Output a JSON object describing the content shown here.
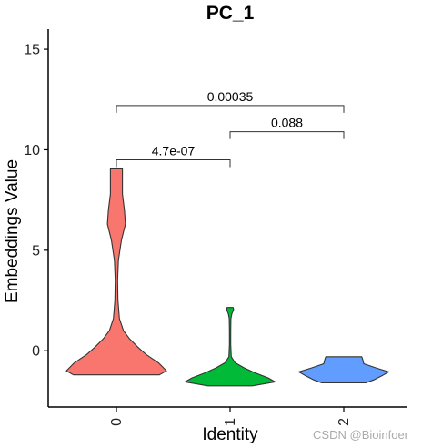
{
  "chart_data": {
    "type": "violin",
    "title": "PC_1",
    "xlabel": "Identity",
    "ylabel": "Embeddings Value",
    "categories": [
      "0",
      "1",
      "2"
    ],
    "ylim": [
      -2.8,
      16
    ],
    "yticks": [
      0,
      5,
      10,
      15
    ],
    "series": [
      {
        "category": "0",
        "color": "#F8766D",
        "density": [
          [
            -1.2,
            0.43
          ],
          [
            -1.0,
            0.5
          ],
          [
            -0.6,
            0.42
          ],
          [
            -0.2,
            0.3
          ],
          [
            0.2,
            0.21
          ],
          [
            0.6,
            0.13
          ],
          [
            1.0,
            0.07
          ],
          [
            1.6,
            0.03
          ],
          [
            2.5,
            0.015
          ],
          [
            3.5,
            0.012
          ],
          [
            4.5,
            0.02
          ],
          [
            5.5,
            0.05
          ],
          [
            6.3,
            0.09
          ],
          [
            7.0,
            0.08
          ],
          [
            7.8,
            0.06
          ],
          [
            8.5,
            0.06
          ],
          [
            9.05,
            0.06
          ]
        ]
      },
      {
        "category": "1",
        "color": "#00BA38",
        "density": [
          [
            -1.75,
            0.22
          ],
          [
            -1.55,
            0.45
          ],
          [
            -1.35,
            0.38
          ],
          [
            -1.1,
            0.25
          ],
          [
            -0.85,
            0.14
          ],
          [
            -0.6,
            0.05
          ],
          [
            -0.3,
            0.012
          ],
          [
            0.3,
            0.006
          ],
          [
            1.0,
            0.006
          ],
          [
            1.6,
            0.008
          ],
          [
            1.85,
            0.018
          ],
          [
            2.05,
            0.035
          ],
          [
            2.15,
            0.03
          ]
        ]
      },
      {
        "category": "2",
        "color": "#619CFF",
        "density": [
          [
            -1.6,
            0.22
          ],
          [
            -1.45,
            0.3
          ],
          [
            -1.25,
            0.38
          ],
          [
            -1.05,
            0.45
          ],
          [
            -0.85,
            0.32
          ],
          [
            -0.65,
            0.2
          ],
          [
            -0.45,
            0.19
          ],
          [
            -0.3,
            0.18
          ]
        ]
      }
    ],
    "comparisons": [
      {
        "from": "0",
        "to": "1",
        "y": 9.5,
        "label": "4.7e-07"
      },
      {
        "from": "1",
        "to": "2",
        "y": 10.9,
        "label": "0.088"
      },
      {
        "from": "0",
        "to": "2",
        "y": 12.2,
        "label": "0.00035"
      }
    ]
  },
  "watermark": "CSDN @Bioinfoer"
}
